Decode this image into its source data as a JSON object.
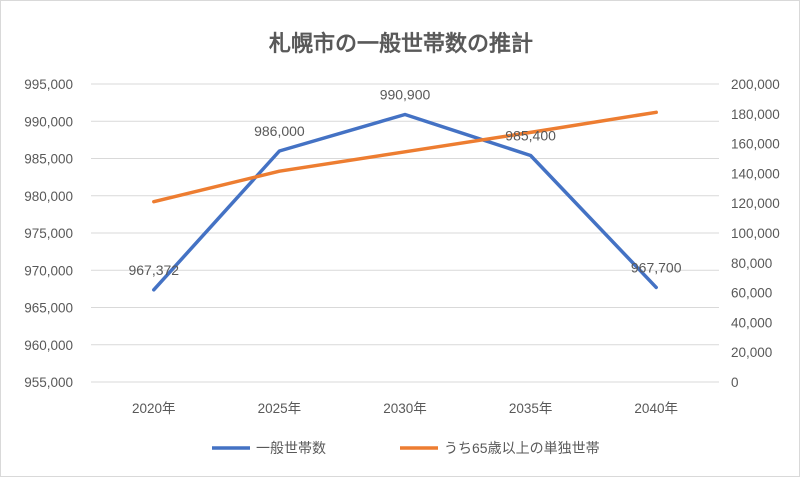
{
  "chart_data": {
    "type": "line",
    "title": "札幌市の一般世帯数の推計",
    "categories": [
      "2020年",
      "2025年",
      "2030年",
      "2035年",
      "2040年"
    ],
    "series": [
      {
        "name": "一般世帯数",
        "axis": "left",
        "color": "#4472C4",
        "values": [
          967372,
          986000,
          990900,
          985400,
          967700
        ],
        "data_labels": [
          "967,372",
          "986,000",
          "990,900",
          "985,400",
          "967,700"
        ]
      },
      {
        "name": "うち65歳以上の単独世帯",
        "axis": "right",
        "color": "#ED7D31",
        "values": [
          121000,
          141500,
          154500,
          167500,
          181000
        ]
      }
    ],
    "y_left": {
      "min": 955000,
      "max": 995000,
      "ticks": [
        "955,000",
        "960,000",
        "965,000",
        "970,000",
        "975,000",
        "980,000",
        "985,000",
        "990,000",
        "995,000"
      ]
    },
    "y_right": {
      "min": 0,
      "max": 200000,
      "ticks": [
        "0",
        "20,000",
        "40,000",
        "60,000",
        "80,000",
        "100,000",
        "120,000",
        "140,000",
        "160,000",
        "180,000",
        "200,000"
      ]
    },
    "grid": true,
    "legend": "bottom"
  }
}
